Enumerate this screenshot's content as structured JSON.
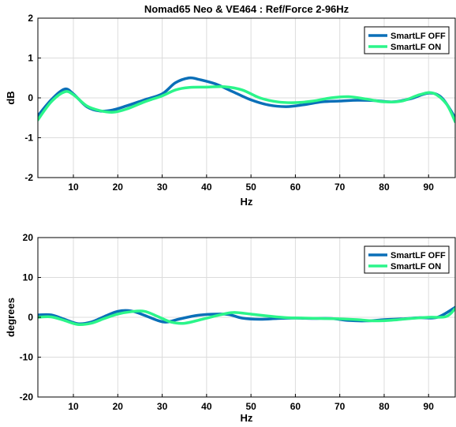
{
  "colors": {
    "off": "#0A6FB8",
    "on": "#2BF58A"
  },
  "chart_data": [
    {
      "type": "line",
      "title": "Nomad65 Neo & VE464 : Ref/Force 2-96Hz",
      "xlabel": "Hz",
      "ylabel": "dB",
      "xlim": [
        2,
        96
      ],
      "ylim": [
        -2,
        2
      ],
      "xticks": [
        10,
        20,
        30,
        40,
        50,
        60,
        70,
        80,
        90
      ],
      "yticks": [
        -2,
        -1,
        0,
        1,
        2
      ],
      "grid": true,
      "legend_position": "top-right",
      "series": [
        {
          "name": "SmartLF OFF",
          "x": [
            2,
            5,
            8,
            10,
            13,
            16,
            19,
            22,
            26,
            30,
            33,
            36,
            38,
            42,
            46,
            50,
            54,
            58,
            62,
            66,
            70,
            74,
            78,
            82,
            86,
            90,
            93,
            96
          ],
          "y": [
            -0.45,
            -0.05,
            0.22,
            0.1,
            -0.22,
            -0.33,
            -0.3,
            -0.2,
            -0.05,
            0.1,
            0.38,
            0.5,
            0.47,
            0.35,
            0.15,
            -0.05,
            -0.18,
            -0.22,
            -0.17,
            -0.1,
            -0.08,
            -0.06,
            -0.07,
            -0.1,
            -0.02,
            0.12,
            0.0,
            -0.5
          ]
        },
        {
          "name": "SmartLF ON",
          "x": [
            2,
            5,
            8,
            10,
            13,
            16,
            19,
            22,
            26,
            30,
            33,
            36,
            40,
            44,
            48,
            52,
            56,
            60,
            64,
            68,
            72,
            76,
            80,
            84,
            88,
            91,
            94,
            96
          ],
          "y": [
            -0.55,
            -0.1,
            0.15,
            0.08,
            -0.2,
            -0.32,
            -0.36,
            -0.28,
            -0.1,
            0.05,
            0.2,
            0.26,
            0.27,
            0.28,
            0.2,
            0.0,
            -0.1,
            -0.12,
            -0.08,
            0.0,
            0.03,
            -0.03,
            -0.1,
            -0.08,
            0.08,
            0.12,
            -0.15,
            -0.6
          ]
        }
      ]
    },
    {
      "type": "line",
      "title": "",
      "xlabel": "Hz",
      "ylabel": "degrees",
      "xlim": [
        2,
        96
      ],
      "ylim": [
        -20,
        20
      ],
      "xticks": [
        10,
        20,
        30,
        40,
        50,
        60,
        70,
        80,
        90
      ],
      "yticks": [
        -20,
        -10,
        0,
        10,
        20
      ],
      "grid": true,
      "legend_position": "top-right",
      "series": [
        {
          "name": "SmartLF OFF",
          "x": [
            2,
            5,
            8,
            11,
            14,
            17,
            20,
            23,
            26,
            29,
            31,
            34,
            38,
            42,
            45,
            48,
            52,
            56,
            60,
            64,
            68,
            72,
            76,
            80,
            84,
            88,
            92,
            96
          ],
          "y": [
            0.6,
            0.6,
            -0.5,
            -1.6,
            -1.2,
            0.2,
            1.5,
            1.6,
            0.5,
            -0.8,
            -1.2,
            -0.4,
            0.5,
            0.8,
            0.7,
            -0.2,
            -0.5,
            -0.3,
            -0.2,
            -0.3,
            -0.3,
            -0.8,
            -0.9,
            -0.6,
            -0.4,
            -0.1,
            0.0,
            2.5
          ]
        },
        {
          "name": "SmartLF ON",
          "x": [
            2,
            5,
            8,
            11,
            14,
            17,
            20,
            23,
            26,
            29,
            32,
            35,
            39,
            43,
            46,
            50,
            54,
            58,
            62,
            66,
            70,
            74,
            78,
            82,
            86,
            90,
            94,
            96
          ],
          "y": [
            0.0,
            0.1,
            -0.8,
            -1.8,
            -1.5,
            -0.3,
            0.8,
            1.4,
            1.5,
            0.2,
            -1.2,
            -1.5,
            -0.5,
            0.6,
            1.2,
            0.8,
            0.3,
            -0.1,
            -0.2,
            -0.3,
            -0.4,
            -0.6,
            -0.9,
            -0.7,
            -0.3,
            0.0,
            0.2,
            2.2
          ]
        }
      ]
    }
  ]
}
